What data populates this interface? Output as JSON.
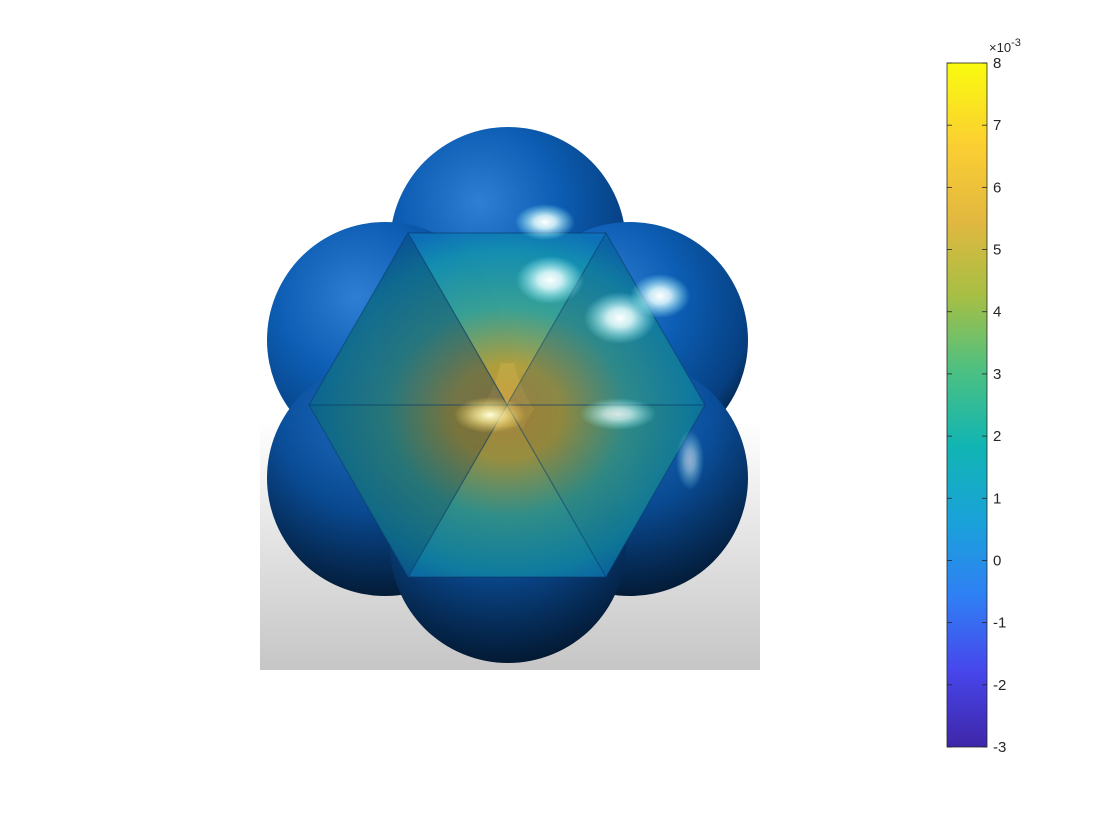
{
  "chart_data": {
    "type": "surface",
    "title": "",
    "description_view": "top-down view of seven overlapping spheres clipped into a central hexagram of triangular facets",
    "colormap": "parula",
    "colorbar": {
      "location": "right",
      "clim": [
        -3,
        8
      ],
      "exponent_label": "×10",
      "exponent_sup": "-3",
      "ticks": [
        -3,
        -2,
        -1,
        0,
        1,
        2,
        3,
        4,
        5,
        6,
        7,
        8
      ],
      "tick_labels": [
        "-3",
        "-2",
        "-1",
        "0",
        "1",
        "2",
        "3",
        "4",
        "5",
        "6",
        "7",
        "8"
      ]
    },
    "surface_value_range": {
      "center": 5.5,
      "edge": -1.0
    },
    "colors": {
      "colormap_stops": [
        "#3e26a8",
        "#4746eb",
        "#2f7ff4",
        "#1aa2d9",
        "#11b5b3",
        "#4cc082",
        "#a7bf44",
        "#e2b840",
        "#fbcf32",
        "#f9fb0e"
      ],
      "sphere_base": "#0a5bb0",
      "sphere_shadow": "#041a33",
      "center_warm": "#c99836"
    }
  }
}
